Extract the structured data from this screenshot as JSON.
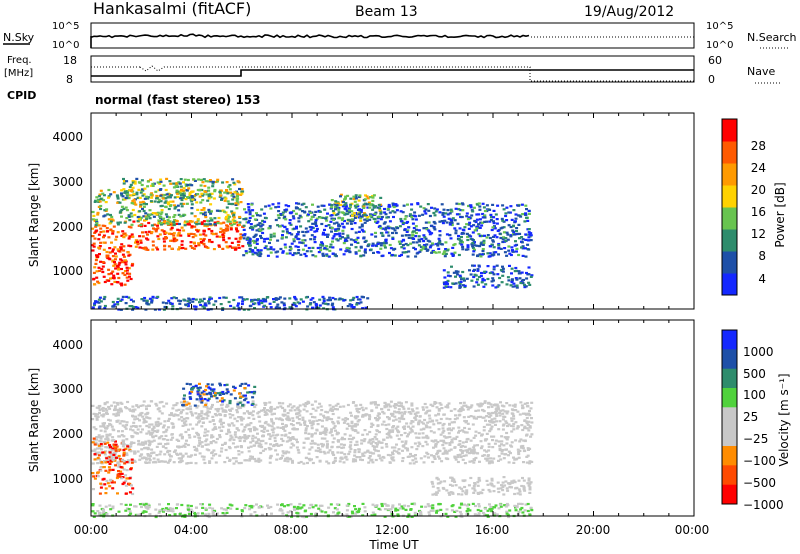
{
  "header": {
    "station": "Hankasalmi (fitACF)",
    "beam": "Beam 13",
    "date": "19/Aug/2012"
  },
  "strip": {
    "nsky_label": "N.Sky",
    "nsky_top_tick": "10^5",
    "nsky_bottom_tick": "10^0",
    "nsearch_label": "N.Search",
    "nsearch_top_tick": "10^5",
    "nsearch_bottom_tick": "10^0",
    "freq_label_1": "Freq.",
    "freq_label_2": "[MHz]",
    "freq_top_tick": "18",
    "freq_bottom_tick": "8",
    "nave_label": "Nave",
    "nave_top_tick": "60",
    "nave_bottom_tick": "0",
    "cpid_label": "CPID",
    "cpid_value": "normal (fast stereo) 153"
  },
  "colors": {
    "power": [
      "#1428ff",
      "#1e50a8",
      "#2e8c6c",
      "#68c450",
      "#ffd200",
      "#ff9a00",
      "#ff5a00",
      "#ff0000"
    ],
    "velocity": [
      "#ff0000",
      "#ff4a00",
      "#ff8c00",
      "#c8c8c8",
      "#c8c8c8",
      "#50d23c",
      "#2e8c6c",
      "#1e50a8",
      "#1428ff"
    ]
  },
  "chart_data": [
    {
      "type": "heatmap",
      "name": "power-panel",
      "ylabel": "Slant Range [km]",
      "xlabel": "",
      "yticks": [
        "1000",
        "2000",
        "3000",
        "4000"
      ],
      "ylim": [
        200,
        4600
      ],
      "xlim": [
        "00:00",
        "24:00"
      ],
      "colorbar": {
        "label": "Power [dB]",
        "ticks": [
          "4",
          "8",
          "12",
          "16",
          "20",
          "24",
          "28"
        ],
        "range": [
          0,
          32
        ]
      },
      "regions": [
        {
          "t0": 0.0,
          "t1": 1.6,
          "r0": 750,
          "r1": 2100,
          "level": "high"
        },
        {
          "t0": 1.6,
          "t1": 6.0,
          "r0": 1550,
          "r1": 2200,
          "level": "high"
        },
        {
          "t0": 0.0,
          "t1": 6.0,
          "r0": 2100,
          "r1": 2900,
          "level": "medium"
        },
        {
          "t0": 1.2,
          "t1": 6.0,
          "r0": 2700,
          "r1": 3150,
          "level": "medium"
        },
        {
          "t0": 6.0,
          "t1": 17.5,
          "r0": 1400,
          "r1": 2600,
          "level": "low-medium"
        },
        {
          "t0": 9.5,
          "t1": 11.5,
          "r0": 2200,
          "r1": 2800,
          "level": "medium"
        },
        {
          "t0": 14.0,
          "t1": 17.5,
          "r0": 700,
          "r1": 1200,
          "level": "low"
        },
        {
          "t0": 0.0,
          "t1": 11.0,
          "r0": 200,
          "r1": 500,
          "level": "low"
        }
      ]
    },
    {
      "type": "heatmap",
      "name": "velocity-panel",
      "ylabel": "Slant Range [km]",
      "xlabel": "Time UT",
      "yticks": [
        "1000",
        "2000",
        "3000",
        "4000"
      ],
      "xticks": [
        "00:00",
        "04:00",
        "08:00",
        "12:00",
        "16:00",
        "20:00",
        "00:00"
      ],
      "ylim": [
        200,
        4600
      ],
      "xlim": [
        "00:00",
        "24:00"
      ],
      "colorbar": {
        "label": "Velocity [m s⁻¹]",
        "ticks": [
          "1000",
          "500",
          "100",
          "25",
          "−25",
          "−100",
          "−500",
          "−1000"
        ]
      },
      "regions": [
        {
          "t0": 0.0,
          "t1": 17.5,
          "r0": 1400,
          "r1": 2800,
          "level": "ground-scatter"
        },
        {
          "t0": 3.5,
          "t1": 6.5,
          "r0": 2700,
          "r1": 3200,
          "level": "positive-fast"
        },
        {
          "t0": 0.0,
          "t1": 1.6,
          "r0": 700,
          "r1": 2000,
          "level": "negative"
        },
        {
          "t0": 13.5,
          "t1": 17.5,
          "r0": 700,
          "r1": 1100,
          "level": "ground-scatter"
        },
        {
          "t0": 0.0,
          "t1": 17.5,
          "r0": 200,
          "r1": 500,
          "level": "slow-positive"
        }
      ]
    }
  ]
}
